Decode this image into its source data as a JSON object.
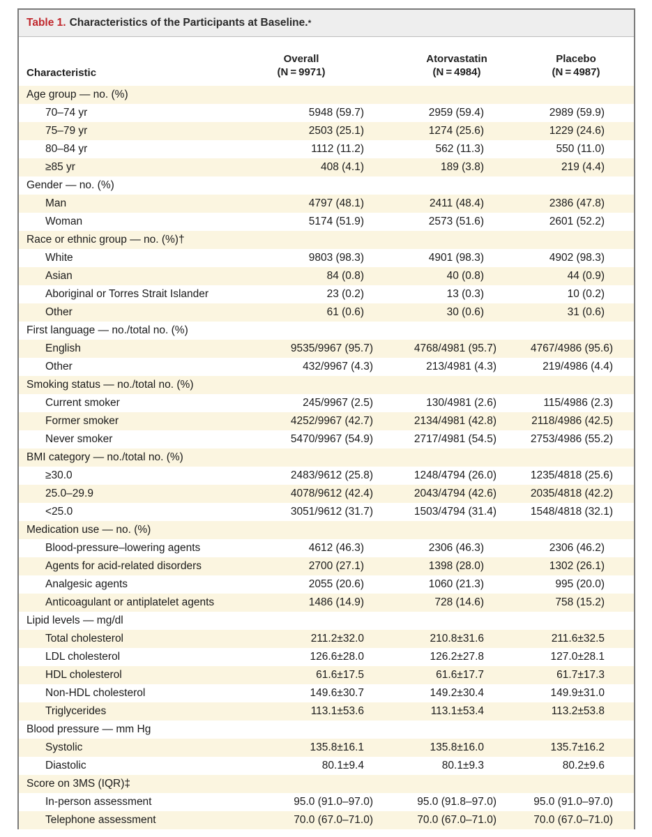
{
  "table": {
    "title_number": "Table 1.",
    "title_text": "Characteristics of the Participants at Baseline.",
    "title_mark": "*",
    "headers": {
      "characteristic": "Characteristic",
      "overall": "Overall",
      "overall_n": "(N = 9971)",
      "atorvastatin": "Atorvastatin",
      "atorvastatin_n": "(N = 4984)",
      "placebo": "Placebo",
      "placebo_n": "(N = 4987)"
    },
    "rows": [
      {
        "label": "Age group — no. (%)",
        "type": "cat"
      },
      {
        "label": "70–74 yr",
        "type": "sub",
        "v1": "5948 (59.7)",
        "v2": "2959 (59.4)",
        "v3": "2989 (59.9)"
      },
      {
        "label": "75–79 yr",
        "type": "sub",
        "v1": "2503 (25.1)",
        "v2": "1274 (25.6)",
        "v3": "1229 (24.6)"
      },
      {
        "label": "80–84 yr",
        "type": "sub",
        "v1": "1112 (11.2)",
        "v2": "562 (11.3)",
        "v3": "550 (11.0)"
      },
      {
        "label": "≥85 yr",
        "type": "sub",
        "v1": "408 (4.1)",
        "v2": "189 (3.8)",
        "v3": "219 (4.4)"
      },
      {
        "label": "Gender — no. (%)",
        "type": "cat"
      },
      {
        "label": "Man",
        "type": "sub",
        "v1": "4797 (48.1)",
        "v2": "2411 (48.4)",
        "v3": "2386 (47.8)"
      },
      {
        "label": "Woman",
        "type": "sub",
        "v1": "5174 (51.9)",
        "v2": "2573 (51.6)",
        "v3": "2601 (52.2)"
      },
      {
        "label": "Race or ethnic group — no. (%)†",
        "type": "cat"
      },
      {
        "label": "White",
        "type": "sub",
        "v1": "9803 (98.3)",
        "v2": "4901 (98.3)",
        "v3": "4902 (98.3)"
      },
      {
        "label": "Asian",
        "type": "sub",
        "v1": "84 (0.8)",
        "v2": "40 (0.8)",
        "v3": "44 (0.9)"
      },
      {
        "label": "Aboriginal or Torres Strait Islander",
        "type": "sub",
        "v1": "23 (0.2)",
        "v2": "13 (0.3)",
        "v3": "10 (0.2)"
      },
      {
        "label": "Other",
        "type": "sub",
        "v1": "61 (0.6)",
        "v2": "30 (0.6)",
        "v3": "31 (0.6)"
      },
      {
        "label": "First language — no./total no. (%)",
        "type": "cat"
      },
      {
        "label": "English",
        "type": "sub",
        "v1": "9535/9967 (95.7)",
        "v2": "4768/4981 (95.7)",
        "v3": "4767/4986 (95.6)",
        "wide": true
      },
      {
        "label": "Other",
        "type": "sub",
        "v1": "432/9967 (4.3)",
        "v2": "213/4981 (4.3)",
        "v3": "219/4986 (4.4)",
        "wide": true
      },
      {
        "label": "Smoking status — no./total no. (%)",
        "type": "cat"
      },
      {
        "label": "Current smoker",
        "type": "sub",
        "v1": "245/9967 (2.5)",
        "v2": "130/4981 (2.6)",
        "v3": "115/4986 (2.3)",
        "wide": true
      },
      {
        "label": "Former smoker",
        "type": "sub",
        "v1": "4252/9967 (42.7)",
        "v2": "2134/4981 (42.8)",
        "v3": "2118/4986 (42.5)",
        "wide": true
      },
      {
        "label": "Never smoker",
        "type": "sub",
        "v1": "5470/9967 (54.9)",
        "v2": "2717/4981 (54.5)",
        "v3": "2753/4986 (55.2)",
        "wide": true
      },
      {
        "label": "BMI category — no./total no. (%)",
        "type": "cat"
      },
      {
        "label": "≥30.0",
        "type": "sub",
        "v1": "2483/9612 (25.8)",
        "v2": "1248/4794 (26.0)",
        "v3": "1235/4818 (25.6)",
        "wide": true
      },
      {
        "label": "25.0–29.9",
        "type": "sub",
        "v1": "4078/9612 (42.4)",
        "v2": "2043/4794 (42.6)",
        "v3": "2035/4818 (42.2)",
        "wide": true
      },
      {
        "label": "<25.0",
        "type": "sub",
        "v1": "3051/9612 (31.7)",
        "v2": "1503/4794 (31.4)",
        "v3": "1548/4818 (32.1)",
        "wide": true
      },
      {
        "label": "Medication use — no. (%)",
        "type": "cat"
      },
      {
        "label": "Blood-pressure–lowering agents",
        "type": "sub",
        "v1": "4612 (46.3)",
        "v2": "2306 (46.3)",
        "v3": "2306 (46.2)"
      },
      {
        "label": "Agents for acid-related disorders",
        "type": "sub",
        "v1": "2700 (27.1)",
        "v2": "1398 (28.0)",
        "v3": "1302 (26.1)"
      },
      {
        "label": "Analgesic agents",
        "type": "sub",
        "v1": "2055 (20.6)",
        "v2": "1060 (21.3)",
        "v3": "995 (20.0)"
      },
      {
        "label": "Anticoagulant or antiplatelet agents",
        "type": "sub",
        "v1": "1486 (14.9)",
        "v2": "728 (14.6)",
        "v3": "758 (15.2)"
      },
      {
        "label": "Lipid levels — mg/dl",
        "type": "cat"
      },
      {
        "label": "Total cholesterol",
        "type": "sub",
        "v1": "211.2±32.0",
        "v2": "210.8±31.6",
        "v3": "211.6±32.5"
      },
      {
        "label": "LDL cholesterol",
        "type": "sub",
        "v1": "126.6±28.0",
        "v2": "126.2±27.8",
        "v3": "127.0±28.1"
      },
      {
        "label": "HDL cholesterol",
        "type": "sub",
        "v1": "61.6±17.5",
        "v2": "61.6±17.7",
        "v3": "61.7±17.3"
      },
      {
        "label": "Non-HDL cholesterol",
        "type": "sub",
        "v1": "149.6±30.7",
        "v2": "149.2±30.4",
        "v3": "149.9±31.0"
      },
      {
        "label": "Triglycerides",
        "type": "sub",
        "v1": "113.1±53.6",
        "v2": "113.1±53.4",
        "v3": "113.2±53.8"
      },
      {
        "label": "Blood pressure — mm Hg",
        "type": "cat"
      },
      {
        "label": "Systolic",
        "type": "sub",
        "v1": "135.8±16.1",
        "v2": "135.8±16.0",
        "v3": "135.7±16.2"
      },
      {
        "label": "Diastolic",
        "type": "sub",
        "v1": "80.1±9.4",
        "v2": "80.1±9.3",
        "v3": "80.2±9.6"
      },
      {
        "label": "Score on 3MS (IQR)‡",
        "type": "cat"
      },
      {
        "label": "In-person assessment",
        "type": "sub",
        "v1": "95.0 (91.0–97.0)",
        "v2": "95.0 (91.8–97.0)",
        "v3": "95.0 (91.0–97.0)",
        "wide": true
      },
      {
        "label": "Telephone assessment",
        "type": "sub",
        "v1": "70.0 (67.0–71.0)",
        "v2": "70.0 (67.0–71.0)",
        "v3": "70.0 (67.0–71.0)",
        "wide": true
      }
    ]
  }
}
